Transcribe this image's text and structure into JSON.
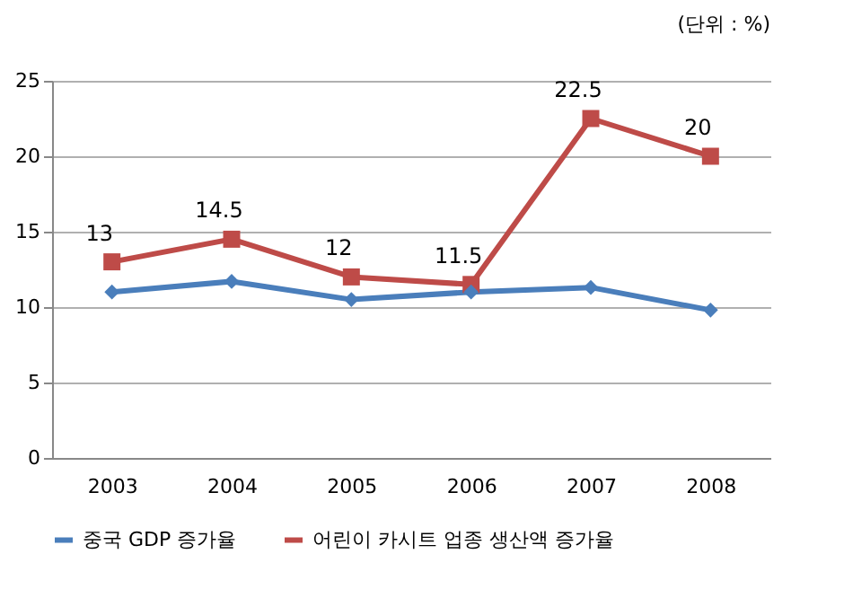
{
  "chart_data": {
    "type": "line",
    "subtitle": "(단위 : %)",
    "categories": [
      "2003",
      "2004",
      "2005",
      "2006",
      "2007",
      "2008"
    ],
    "series": [
      {
        "name": "중국 GDP 증가율",
        "color": "#4a7ebb",
        "marker": "diamond",
        "values": [
          11.0,
          11.7,
          10.5,
          11.0,
          11.3,
          9.8
        ]
      },
      {
        "name": "어린이 카시트 업종 생산액 증가율",
        "color": "#be4b48",
        "marker": "square",
        "values": [
          13,
          14.5,
          12,
          11.5,
          22.5,
          20
        ],
        "value_labels": [
          "13",
          "14.5",
          "12",
          "11.5",
          "22.5",
          "20"
        ]
      }
    ],
    "ylim": [
      0,
      25
    ],
    "yticks": [
      0,
      5,
      10,
      15,
      20,
      25
    ],
    "grid": "y",
    "legend": "bottom"
  }
}
